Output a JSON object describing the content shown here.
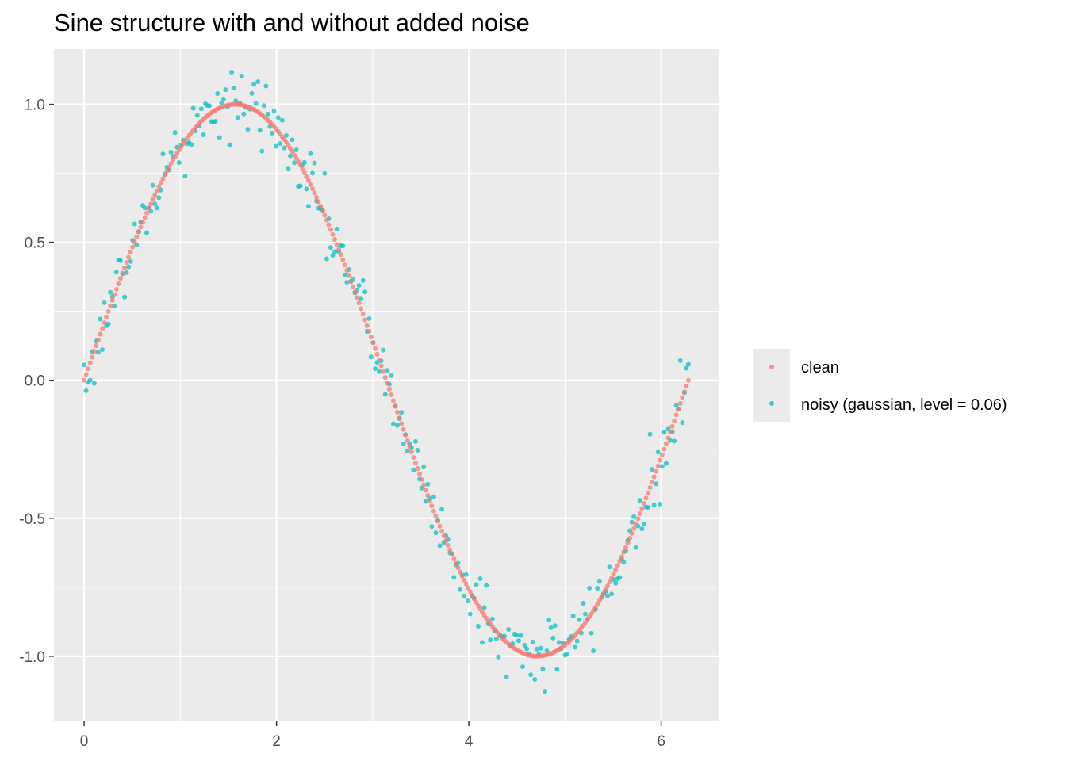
{
  "chart_data": {
    "type": "scatter",
    "title": "Sine structure with and without added noise",
    "xlabel": "",
    "ylabel": "",
    "xlim": [
      -0.314,
      6.597
    ],
    "ylim": [
      -1.236,
      1.2
    ],
    "x_ticks": [
      0,
      2,
      4,
      6
    ],
    "x_tick_labels": [
      "0",
      "2",
      "4",
      "6"
    ],
    "y_ticks": [
      -1.0,
      -0.5,
      0.0,
      0.5,
      1.0
    ],
    "y_tick_labels": [
      "-1.0",
      "-0.5",
      "0.0",
      "0.5",
      "1.0"
    ],
    "grid": true,
    "legend_position": "right",
    "series": [
      {
        "name": "clean",
        "color": "#F8766D",
        "function": "sin",
        "x_range": [
          0,
          6.2832
        ],
        "n_points": 300,
        "noise_level": 0
      },
      {
        "name": "noisy (gaussian, level = 0.06)",
        "color": "#00BFC4",
        "function": "sin",
        "x_range": [
          0,
          6.2832
        ],
        "n_points": 300,
        "noise_level": 0.06
      }
    ]
  }
}
